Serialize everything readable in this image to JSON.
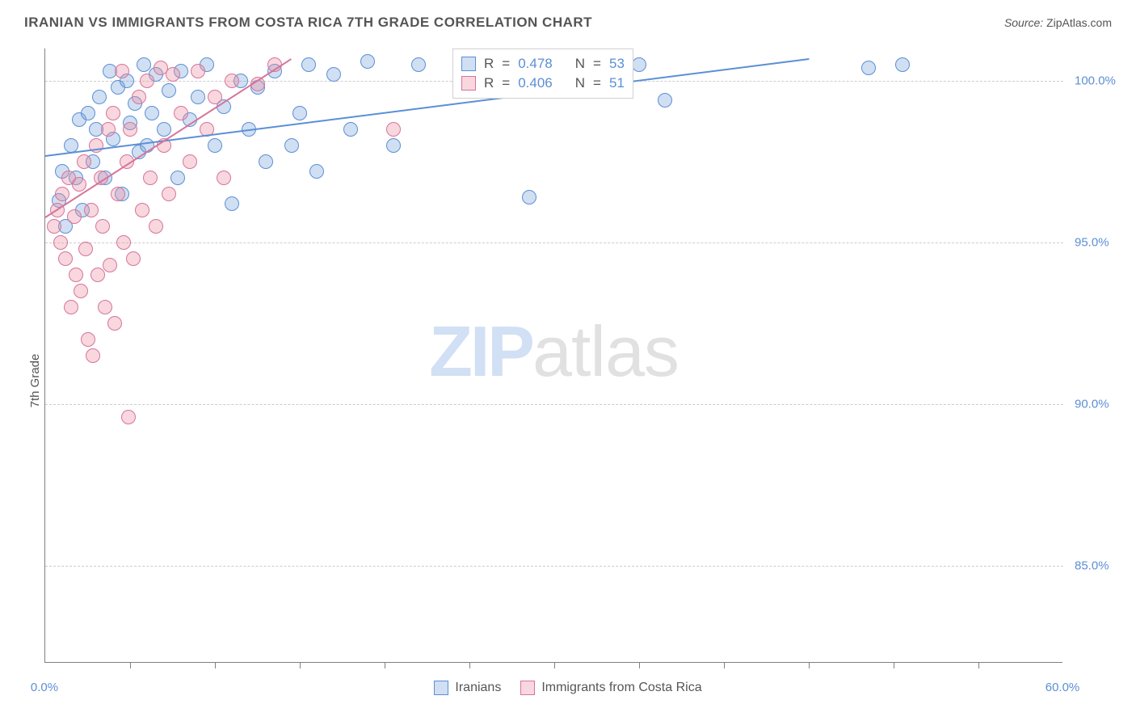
{
  "title": "IRANIAN VS IMMIGRANTS FROM COSTA RICA 7TH GRADE CORRELATION CHART",
  "source_label": "Source:",
  "source_value": "ZipAtlas.com",
  "y_axis_label": "7th Grade",
  "watermark": {
    "a": "ZIP",
    "b": "atlas"
  },
  "chart": {
    "type": "scatter",
    "background_color": "#ffffff",
    "grid_color": "#cccccc",
    "axis_color": "#808080",
    "tick_label_color": "#5b8fd6",
    "text_color": "#555555",
    "xlim": [
      0,
      60
    ],
    "ylim": [
      82,
      101
    ],
    "y_ticks": [
      85.0,
      90.0,
      95.0,
      100.0
    ],
    "y_tick_labels": [
      "85.0%",
      "90.0%",
      "95.0%",
      "100.0%"
    ],
    "x_minor_ticks": [
      5,
      10,
      15,
      20,
      25,
      30,
      35,
      40,
      45,
      50,
      55
    ],
    "x_end_labels": {
      "start": "0.0%",
      "end": "60.0%"
    },
    "marker_radius": 9,
    "marker_border_width": 1.5,
    "series": [
      {
        "name": "Iranians",
        "fill": "rgba(120,162,219,0.35)",
        "stroke": "#5b8fd6",
        "r_value": "0.478",
        "n_value": "53",
        "trend": {
          "x1": 0,
          "y1": 97.7,
          "x2": 45,
          "y2": 100.7,
          "width": 2.5
        },
        "points": [
          [
            0.8,
            96.3
          ],
          [
            1.0,
            97.2
          ],
          [
            1.2,
            95.5
          ],
          [
            1.5,
            98.0
          ],
          [
            1.8,
            97.0
          ],
          [
            2.0,
            98.8
          ],
          [
            2.2,
            96.0
          ],
          [
            2.5,
            99.0
          ],
          [
            2.8,
            97.5
          ],
          [
            3.0,
            98.5
          ],
          [
            3.2,
            99.5
          ],
          [
            3.5,
            97.0
          ],
          [
            3.8,
            100.3
          ],
          [
            4.0,
            98.2
          ],
          [
            4.3,
            99.8
          ],
          [
            4.5,
            96.5
          ],
          [
            4.8,
            100.0
          ],
          [
            5.0,
            98.7
          ],
          [
            5.3,
            99.3
          ],
          [
            5.5,
            97.8
          ],
          [
            5.8,
            100.5
          ],
          [
            6.0,
            98.0
          ],
          [
            6.3,
            99.0
          ],
          [
            6.5,
            100.2
          ],
          [
            7.0,
            98.5
          ],
          [
            7.3,
            99.7
          ],
          [
            7.8,
            97.0
          ],
          [
            8.0,
            100.3
          ],
          [
            8.5,
            98.8
          ],
          [
            9.0,
            99.5
          ],
          [
            9.5,
            100.5
          ],
          [
            10.0,
            98.0
          ],
          [
            10.5,
            99.2
          ],
          [
            11.0,
            96.2
          ],
          [
            11.5,
            100.0
          ],
          [
            12.0,
            98.5
          ],
          [
            12.5,
            99.8
          ],
          [
            13.0,
            97.5
          ],
          [
            13.5,
            100.3
          ],
          [
            14.5,
            98.0
          ],
          [
            15.0,
            99.0
          ],
          [
            15.5,
            100.5
          ],
          [
            16.0,
            97.2
          ],
          [
            17.0,
            100.2
          ],
          [
            18.0,
            98.5
          ],
          [
            19.0,
            100.6
          ],
          [
            20.5,
            98.0
          ],
          [
            22.0,
            100.5
          ],
          [
            28.5,
            96.4
          ],
          [
            35.0,
            100.5
          ],
          [
            36.5,
            99.4
          ],
          [
            48.5,
            100.4
          ],
          [
            50.5,
            100.5
          ]
        ]
      },
      {
        "name": "Immigrants from Costa Rica",
        "fill": "rgba(235,140,160,0.35)",
        "stroke": "#d6749a",
        "r_value": "0.406",
        "n_value": "51",
        "trend": {
          "x1": 0,
          "y1": 95.8,
          "x2": 14.5,
          "y2": 100.7,
          "width": 2.5
        },
        "points": [
          [
            0.5,
            95.5
          ],
          [
            0.7,
            96.0
          ],
          [
            0.9,
            95.0
          ],
          [
            1.0,
            96.5
          ],
          [
            1.2,
            94.5
          ],
          [
            1.4,
            97.0
          ],
          [
            1.5,
            93.0
          ],
          [
            1.7,
            95.8
          ],
          [
            1.8,
            94.0
          ],
          [
            2.0,
            96.8
          ],
          [
            2.1,
            93.5
          ],
          [
            2.3,
            97.5
          ],
          [
            2.4,
            94.8
          ],
          [
            2.5,
            92.0
          ],
          [
            2.7,
            96.0
          ],
          [
            2.8,
            91.5
          ],
          [
            3.0,
            98.0
          ],
          [
            3.1,
            94.0
          ],
          [
            3.3,
            97.0
          ],
          [
            3.4,
            95.5
          ],
          [
            3.5,
            93.0
          ],
          [
            3.7,
            98.5
          ],
          [
            3.8,
            94.3
          ],
          [
            4.0,
            99.0
          ],
          [
            4.1,
            92.5
          ],
          [
            4.3,
            96.5
          ],
          [
            4.5,
            100.3
          ],
          [
            4.6,
            95.0
          ],
          [
            4.8,
            97.5
          ],
          [
            4.9,
            89.6
          ],
          [
            5.0,
            98.5
          ],
          [
            5.2,
            94.5
          ],
          [
            5.5,
            99.5
          ],
          [
            5.7,
            96.0
          ],
          [
            6.0,
            100.0
          ],
          [
            6.2,
            97.0
          ],
          [
            6.5,
            95.5
          ],
          [
            6.8,
            100.4
          ],
          [
            7.0,
            98.0
          ],
          [
            7.3,
            96.5
          ],
          [
            7.5,
            100.2
          ],
          [
            8.0,
            99.0
          ],
          [
            8.5,
            97.5
          ],
          [
            9.0,
            100.3
          ],
          [
            9.5,
            98.5
          ],
          [
            10.0,
            99.5
          ],
          [
            10.5,
            97.0
          ],
          [
            11.0,
            100.0
          ],
          [
            12.5,
            99.9
          ],
          [
            13.5,
            100.5
          ],
          [
            20.5,
            98.5
          ]
        ]
      }
    ],
    "legend": {
      "items": [
        "Iranians",
        "Immigrants from Costa Rica"
      ]
    },
    "stats_box_labels": {
      "r": "R",
      "n": "N",
      "eq": "="
    }
  }
}
